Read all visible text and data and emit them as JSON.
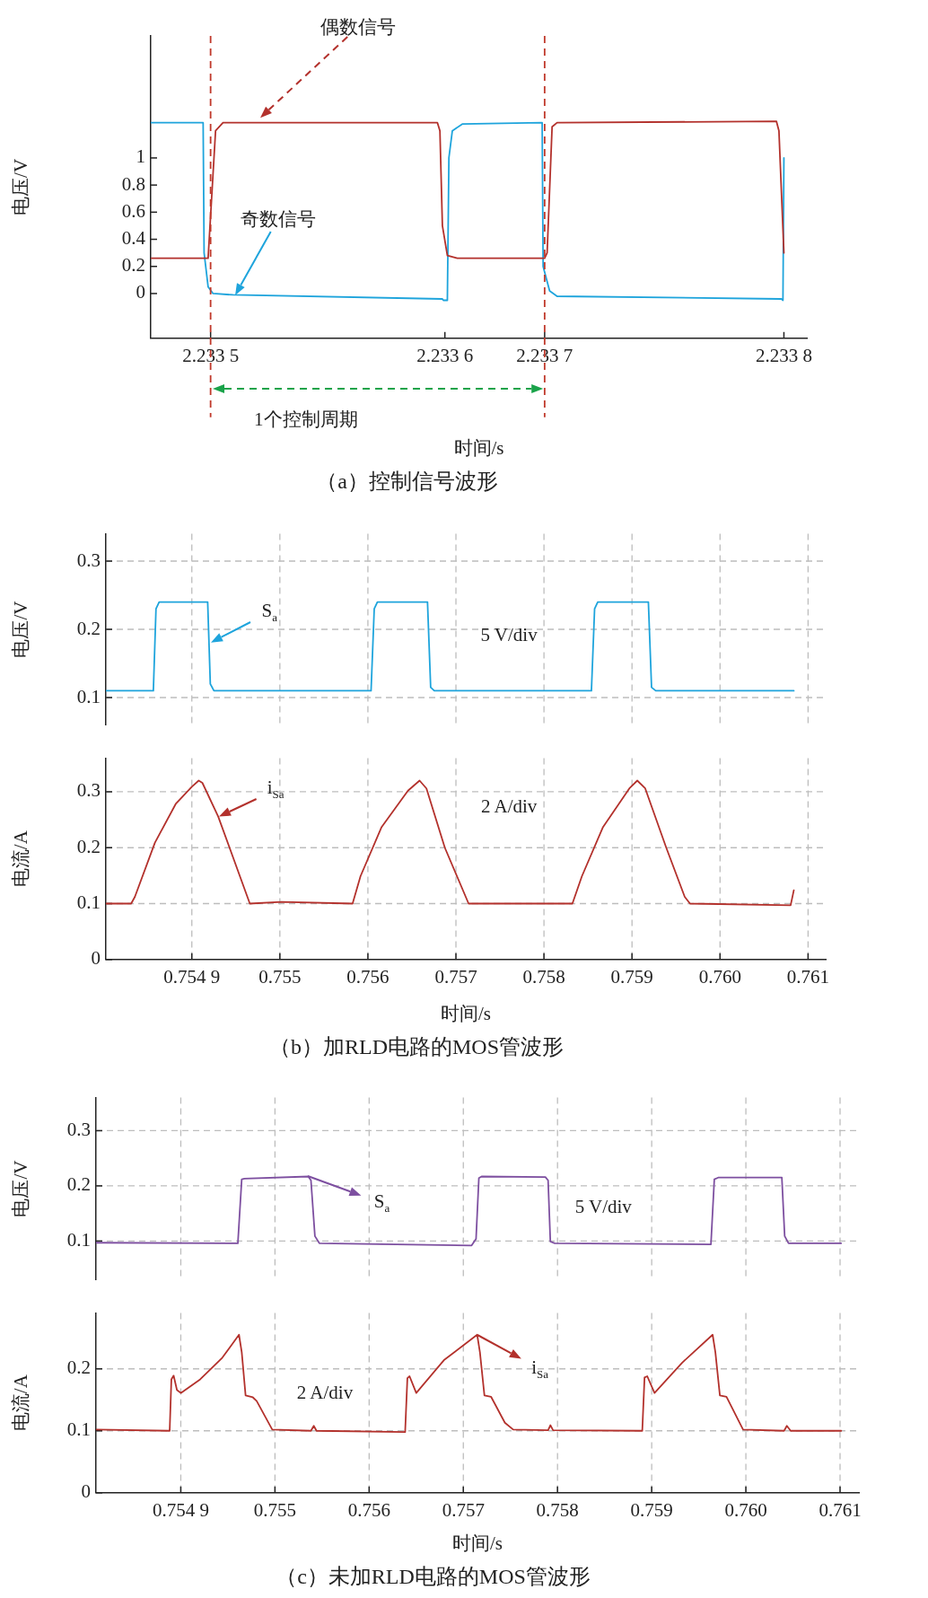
{
  "chart_data": [
    {
      "type": "line",
      "title": "（a）控制信号波形",
      "xlabel": "时间/s",
      "ylabel": "电压/V",
      "marker": "none",
      "line_style": "solid",
      "xlim": [
        2.2334687,
        2.233812
      ],
      "xticks": [
        2.2335,
        {
          "value": 2.2336226,
          "label": "2.233 6"
        },
        {
          "value": 2.2336748,
          "label": "2.233 7"
        },
        2.2338
      ],
      "ylim": [
        -0.33,
        1.9
      ],
      "yticks": [
        0,
        0.2,
        0.4,
        0.6,
        0.8,
        1
      ],
      "series": [
        {
          "color": "#b3312c",
          "x": [
            2.2334687,
            2.2334987,
            2.2335026,
            2.2335065,
            2.2336187,
            2.23362,
            2.2336213,
            2.2336239,
            2.2336291,
            2.2336748,
            2.2336761,
            2.2336787,
            2.2336813,
            2.2337961,
            2.2337974,
            2.2338
          ],
          "values": [
            0.26,
            0.26,
            1.2,
            1.26,
            1.26,
            1.2,
            0.5,
            0.28,
            0.26,
            0.26,
            0.3,
            1.23,
            1.26,
            1.27,
            1.2,
            0.3
          ]
        },
        {
          "color": "#1ea4dc",
          "x": [
            2.2334687,
            2.2334961,
            2.2334966,
            2.2334987,
            2.2335013,
            2.2335117,
            2.2336213,
            2.2336218,
            2.2336239,
            2.2336247,
            2.2336265,
            2.2336317,
            2.2336735,
            2.233674,
            2.2336774,
            2.2336813,
            2.2337987,
            2.2337995,
            2.2338
          ],
          "values": [
            1.26,
            1.26,
            0.3,
            0.05,
            0,
            -0.01,
            -0.04,
            -0.05,
            -0.05,
            1.0,
            1.2,
            1.25,
            1.26,
            0.2,
            0.02,
            -0.02,
            -0.04,
            -0.05,
            1.0
          ]
        }
      ],
      "ref_lines": [
        {
          "axis": "x",
          "value": 2.2335,
          "color": "#c0392b",
          "line_style": "dashed"
        },
        {
          "axis": "x",
          "value": 2.2336748,
          "color": "#c0392b",
          "line_style": "dashed"
        }
      ],
      "annotations": [
        "偶数信号",
        "奇数信号",
        "1个控制周期"
      ]
    },
    {
      "type": "line",
      "ylabel": "电压/V",
      "marker": "none",
      "line_style": "solid",
      "grid": true,
      "tick_labels": "y",
      "xlim": [
        0.753024,
        0.7612
      ],
      "xticks": [
        0.754,
        0.755,
        0.756,
        0.757,
        0.758,
        0.759,
        0.76,
        0.761
      ],
      "ylim": [
        0.06,
        0.34
      ],
      "yticks": [
        0.1,
        0.2,
        0.3
      ],
      "series": [
        {
          "color": "#1ea4dc",
          "x": [
            0.753024,
            0.753563,
            0.753593,
            0.753629,
            0.75418,
            0.75421,
            0.754251,
            0.756036,
            0.756072,
            0.756108,
            0.756677,
            0.756713,
            0.756754,
            0.758539,
            0.758575,
            0.758611,
            0.759186,
            0.759222,
            0.759269,
            0.760838
          ],
          "values": [
            0.11,
            0.11,
            0.23,
            0.24,
            0.24,
            0.12,
            0.11,
            0.11,
            0.23,
            0.24,
            0.24,
            0.115,
            0.11,
            0.11,
            0.23,
            0.24,
            0.24,
            0.115,
            0.11,
            0.11
          ]
        }
      ],
      "annotations": [
        {
          "text": "S$_{a}$",
          "x": 0.75421,
          "y": 0.18
        },
        "5 V/div"
      ]
    },
    {
      "type": "line",
      "title": "（b）加RLD电路的MOS管波形",
      "xlabel": "时间/s",
      "ylabel": "电流/A",
      "marker": "none",
      "line_style": "solid",
      "grid": true,
      "xlim": [
        0.753024,
        0.7612
      ],
      "xticks": [
        {
          "value": 0.754,
          "label": "0.754 9"
        },
        0.755,
        0.756,
        0.757,
        0.758,
        0.759,
        {
          "value": 0.76,
          "label": "0.760"
        },
        0.761
      ],
      "ylim": [
        0,
        0.36
      ],
      "yticks": [
        0,
        0.1,
        0.2,
        0.3
      ],
      "series": [
        {
          "color": "#b3312c",
          "x": [
            0.753024,
            0.753311,
            0.753353,
            0.753581,
            0.75382,
            0.754,
            0.754078,
            0.75412,
            0.754299,
            0.754659,
            0.755018,
            0.755826,
            0.755916,
            0.756156,
            0.756455,
            0.756587,
            0.756665,
            0.756874,
            0.757144,
            0.758323,
            0.758431,
            0.758671,
            0.75897,
            0.75906,
            0.75915,
            0.759389,
            0.759599,
            0.759659,
            0.760802,
            0.760838
          ],
          "values": [
            0.1,
            0.1,
            0.112,
            0.209,
            0.279,
            0.309,
            0.32,
            0.316,
            0.256,
            0.1,
            0.103,
            0.1,
            0.149,
            0.237,
            0.302,
            0.32,
            0.306,
            0.2,
            0.1,
            0.1,
            0.149,
            0.237,
            0.306,
            0.32,
            0.306,
            0.2,
            0.112,
            0.1,
            0.097,
            0.124
          ]
        }
      ],
      "annotations": [
        {
          "text": "i$_{Sa}$",
          "x": 0.7543,
          "y": 0.256
        },
        "2 A/div"
      ]
    },
    {
      "type": "line",
      "ylabel": "电压/V",
      "marker": "none",
      "line_style": "solid",
      "grid": true,
      "tick_labels": "y",
      "xlim": [
        0.7531,
        0.7612
      ],
      "xticks": [
        0.754,
        0.755,
        0.756,
        0.757,
        0.758,
        0.759,
        0.76,
        0.761
      ],
      "ylim": [
        0.03,
        0.36
      ],
      "yticks": [
        0.1,
        0.2,
        0.3
      ],
      "series": [
        {
          "color": "#7d4fa0",
          "x": [
            0.7531,
            0.754606,
            0.754647,
            0.754676,
            0.755353,
            0.755382,
            0.755424,
            0.755471,
            0.757088,
            0.757135,
            0.757165,
            0.757194,
            0.757871,
            0.7579,
            0.757924,
            0.757971,
            0.759629,
            0.759665,
            0.759706,
            0.760382,
            0.760412,
            0.760453,
            0.761012
          ],
          "values": [
            0.097,
            0.096,
            0.212,
            0.213,
            0.217,
            0.21,
            0.109,
            0.096,
            0.092,
            0.104,
            0.214,
            0.217,
            0.216,
            0.21,
            0.099,
            0.096,
            0.094,
            0.212,
            0.215,
            0.215,
            0.109,
            0.096,
            0.096
          ]
        }
      ],
      "annotations": [
        {
          "text": "S$_{a}$",
          "x": 0.755353,
          "y": 0.217
        },
        "5 V/div"
      ]
    },
    {
      "type": "line",
      "title": "（c）未加RLD电路的MOS管波形",
      "xlabel": "时间/s",
      "ylabel": "电流/A",
      "marker": "none",
      "line_style": "solid",
      "grid": true,
      "xlim": [
        0.7531,
        0.7612
      ],
      "xticks": [
        {
          "value": 0.754,
          "label": "0.754 9"
        },
        0.755,
        0.756,
        0.757,
        0.758,
        0.759,
        {
          "value": 0.76,
          "label": "0.760"
        },
        0.761
      ],
      "ylim": [
        0,
        0.29
      ],
      "yticks": [
        0,
        0.1,
        0.2
      ],
      "series": [
        {
          "color": "#b3312c",
          "x": [
            0.7531,
            0.753882,
            0.7539,
            0.753924,
            0.753959,
            0.754,
            0.754206,
            0.754441,
            0.754618,
            0.754647,
            0.754688,
            0.754765,
            0.754806,
            0.754971,
            0.755382,
            0.755412,
            0.755441,
            0.756382,
            0.756406,
            0.756429,
            0.7565,
            0.756794,
            0.757147,
            0.757176,
            0.757224,
            0.757294,
            0.757441,
            0.757529,
            0.7579,
            0.757924,
            0.757953,
            0.7589,
            0.758924,
            0.758953,
            0.75903,
            0.759324,
            0.759647,
            0.759676,
            0.759724,
            0.759794,
            0.75997,
            0.760406,
            0.760435,
            0.760476,
            0.761012
          ],
          "values": [
            0.102,
            0.1,
            0.183,
            0.189,
            0.166,
            0.161,
            0.183,
            0.218,
            0.255,
            0.227,
            0.157,
            0.154,
            0.148,
            0.102,
            0.1,
            0.108,
            0.1,
            0.098,
            0.185,
            0.188,
            0.161,
            0.214,
            0.255,
            0.227,
            0.157,
            0.155,
            0.113,
            0.102,
            0.101,
            0.109,
            0.101,
            0.1,
            0.186,
            0.188,
            0.161,
            0.21,
            0.255,
            0.227,
            0.157,
            0.155,
            0.102,
            0.1,
            0.108,
            0.1,
            0.1
          ]
        }
      ],
      "annotations": [
        {
          "text": "i$_{Sa}$",
          "x": 0.757147,
          "y": 0.255
        },
        "2 A/div"
      ]
    }
  ]
}
